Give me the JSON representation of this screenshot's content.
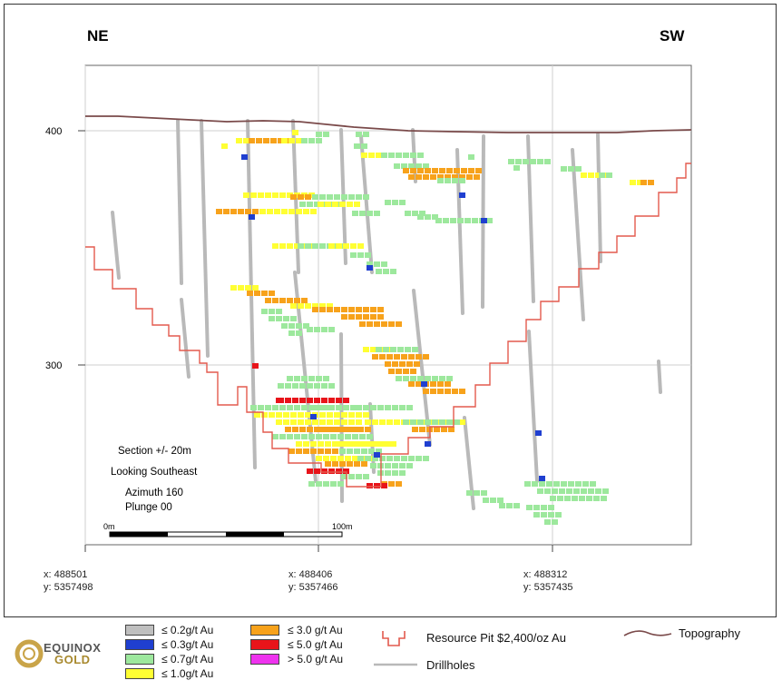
{
  "header": {
    "left_label": "NE",
    "right_label": "SW"
  },
  "axis": {
    "y_ticks": [
      {
        "value": 400,
        "label": "400"
      },
      {
        "value": 300,
        "label": "300"
      }
    ]
  },
  "section_info": {
    "line1": "Section  +/- 20m",
    "line2": "Looking Southeast",
    "line3": "Azimuth 160",
    "line4": "Plunge 00"
  },
  "scale_bar": {
    "start": "0m",
    "end": "100m"
  },
  "coordinates": [
    {
      "x": "x: 488501",
      "y": "y: 5357498"
    },
    {
      "x": "x: 488406",
      "y": "y: 5357466"
    },
    {
      "x": "x: 488312",
      "y": "y: 5357435"
    }
  ],
  "legend": {
    "logo": {
      "line1": "EQUINOX",
      "line2": "GOLD"
    },
    "grades": [
      {
        "label": "≤ 0.2g/t Au",
        "color": "#bfbfbf"
      },
      {
        "label": "≤ 0.3g/t Au",
        "color": "#1f3fd0"
      },
      {
        "label": "≤ 0.7g/t Au",
        "color": "#9de89d"
      },
      {
        "label": "≤ 1.0g/t Au",
        "color": "#ffff33"
      },
      {
        "label": "≤ 3.0 g/t Au",
        "color": "#f7a21b"
      },
      {
        "label": "≤ 5.0 g/t Au",
        "color": "#e8141a"
      },
      {
        "label": "> 5.0 g/t Au",
        "color": "#ee33ee"
      }
    ],
    "pit_label": "Resource Pit $2,400/oz Au",
    "pit_color": "#e35a4e",
    "drillholes_label": "Drillholes",
    "drillhole_color": "#b9b9b9",
    "topography_label": "Topography",
    "topography_color": "#7a4a4a"
  }
}
